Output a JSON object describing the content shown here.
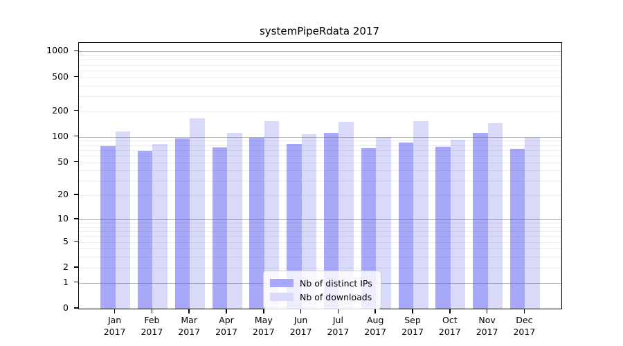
{
  "chart_data": {
    "type": "bar",
    "title": "systemPipeRdata 2017",
    "categories": [
      "Jan 2017",
      "Feb 2017",
      "Mar 2017",
      "Apr 2017",
      "May 2017",
      "Jun 2017",
      "Jul 2017",
      "Aug 2017",
      "Sep 2017",
      "Oct 2017",
      "Nov 2017",
      "Dec 2017"
    ],
    "series": [
      {
        "name": "Nb of distinct IPs",
        "color": "#a8a8f8",
        "values": [
          78,
          68,
          96,
          75,
          98,
          82,
          112,
          73,
          85,
          77,
          112,
          72
        ]
      },
      {
        "name": "Nb of downloads",
        "color": "#d9d9fa",
        "values": [
          115,
          82,
          165,
          112,
          154,
          108,
          150,
          100,
          152,
          92,
          144,
          98
        ]
      }
    ],
    "xlabel": "",
    "ylabel": "",
    "y_scale": "log10(1+x)",
    "ylim": [
      0,
      1257
    ],
    "y_ticks": [
      0,
      1,
      2,
      5,
      10,
      20,
      50,
      100,
      200,
      500,
      1000
    ],
    "y_tick_labels": [
      "0",
      "1",
      "2",
      "5",
      "10",
      "20",
      "50",
      "100",
      "200",
      "500",
      "1000"
    ],
    "grid": "horizontal, log major and minor",
    "legend_position": "bottom-center"
  },
  "style": {
    "bar_color_distinct_ips": "#a8a8f8",
    "bar_color_downloads": "#d9d9fa",
    "major_grid_color": "rgba(100,100,100,0.50)",
    "minor_grid_color": "rgba(100,100,100,0.12)",
    "axis_color": "#000000",
    "legend_background": "rgba(255,255,255,0.8)",
    "legend_border": "#cccccc"
  }
}
